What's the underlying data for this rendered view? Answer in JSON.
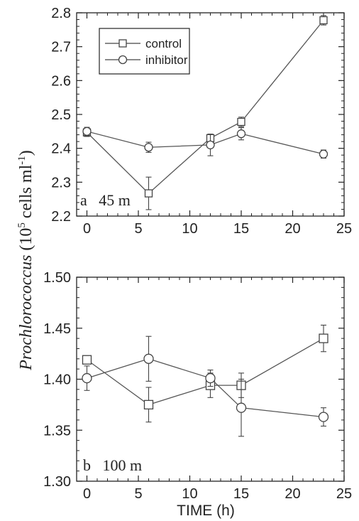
{
  "figure": {
    "ylabel_italic": "Prochlorococcus",
    "ylabel_rest_prefix": " (10",
    "ylabel_exp": "5",
    "ylabel_rest_mid": " cells ml",
    "ylabel_exp2": "-1",
    "ylabel_close": ")"
  },
  "chart_data": [
    {
      "type": "line",
      "panel_label": "a   45 m",
      "xlabel": "",
      "ylabel": "",
      "xlim": [
        -1,
        25
      ],
      "ylim": [
        2.2,
        2.8
      ],
      "xticks": [
        0,
        5,
        10,
        15,
        20,
        25
      ],
      "yticks": [
        "2.2",
        "2.3",
        "2.4",
        "2.5",
        "2.6",
        "2.7",
        "2.8"
      ],
      "legend": {
        "position": "top-left",
        "entries": [
          "control",
          "inhibitor"
        ]
      },
      "series": [
        {
          "name": "control",
          "marker": "square",
          "x": [
            0,
            6,
            12,
            15,
            23
          ],
          "y": [
            2.447,
            2.267,
            2.43,
            2.478,
            2.778
          ],
          "err": [
            0.012,
            0.048,
            0.008,
            0.014,
            0.014
          ]
        },
        {
          "name": "inhibitor",
          "marker": "circle",
          "x": [
            0,
            6,
            12,
            15,
            23
          ],
          "y": [
            2.45,
            2.403,
            2.41,
            2.443,
            2.383
          ],
          "err": [
            0.012,
            0.015,
            0.032,
            0.018,
            0.012
          ]
        }
      ]
    },
    {
      "type": "line",
      "panel_label": "b   100 m",
      "xlabel": "TIME (h)",
      "ylabel": "",
      "xlim": [
        -1,
        25
      ],
      "ylim": [
        1.3,
        1.5
      ],
      "xticks": [
        0,
        5,
        10,
        15,
        20,
        25
      ],
      "yticks": [
        "1.30",
        "1.35",
        "1.40",
        "1.45",
        "1.50"
      ],
      "series": [
        {
          "name": "control",
          "marker": "square",
          "x": [
            0,
            6,
            12,
            15,
            23
          ],
          "y": [
            1.419,
            1.375,
            1.394,
            1.394,
            1.44
          ],
          "err": [
            0.0,
            0.017,
            0.012,
            0.012,
            0.013
          ]
        },
        {
          "name": "inhibitor",
          "marker": "circle",
          "x": [
            0,
            6,
            12,
            15,
            23
          ],
          "y": [
            1.401,
            1.42,
            1.401,
            1.372,
            1.363
          ],
          "err": [
            0.012,
            0.022,
            0.008,
            0.028,
            0.009
          ]
        }
      ]
    }
  ]
}
